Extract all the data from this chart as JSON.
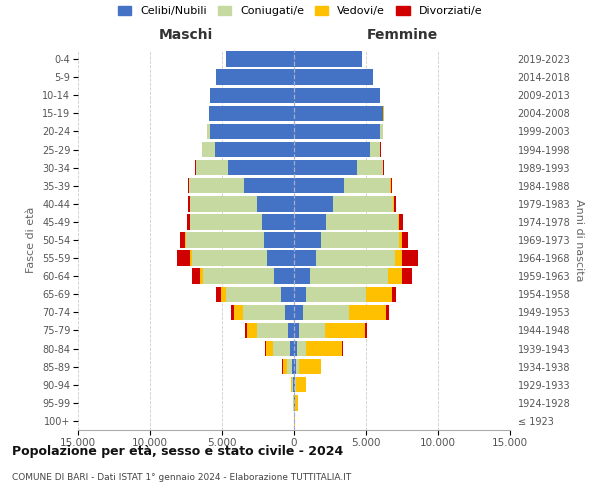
{
  "age_groups": [
    "100+",
    "95-99",
    "90-94",
    "85-89",
    "80-84",
    "75-79",
    "70-74",
    "65-69",
    "60-64",
    "55-59",
    "50-54",
    "45-49",
    "40-44",
    "35-39",
    "30-34",
    "25-29",
    "20-24",
    "15-19",
    "10-14",
    "5-9",
    "0-4"
  ],
  "birth_years": [
    "≤ 1923",
    "1924-1928",
    "1929-1933",
    "1934-1938",
    "1939-1943",
    "1944-1948",
    "1949-1953",
    "1954-1958",
    "1959-1963",
    "1964-1968",
    "1969-1973",
    "1974-1978",
    "1979-1983",
    "1984-1988",
    "1989-1993",
    "1994-1998",
    "1999-2003",
    "2004-2008",
    "2009-2013",
    "2014-2018",
    "2019-2023"
  ],
  "colors": {
    "celibi": "#4472c4",
    "coniugati": "#c5d9a0",
    "vedovi": "#ffc000",
    "divorziati": "#d00000"
  },
  "maschi": {
    "celibi": [
      10,
      30,
      60,
      120,
      250,
      450,
      650,
      900,
      1400,
      1900,
      2100,
      2200,
      2600,
      3500,
      4600,
      5500,
      5800,
      5900,
      5800,
      5400,
      4700
    ],
    "coniugati": [
      5,
      30,
      80,
      400,
      1200,
      2100,
      2900,
      3800,
      4900,
      5200,
      5400,
      5000,
      4600,
      3800,
      2200,
      900,
      250,
      20,
      5,
      2,
      1
    ],
    "vedovi": [
      5,
      20,
      80,
      250,
      500,
      700,
      600,
      400,
      200,
      100,
      60,
      30,
      15,
      10,
      5,
      3,
      2,
      1,
      0,
      0,
      0
    ],
    "divorziati": [
      2,
      5,
      15,
      30,
      80,
      150,
      200,
      300,
      600,
      900,
      350,
      200,
      120,
      80,
      50,
      20,
      10,
      5,
      2,
      1,
      0
    ]
  },
  "femmine": {
    "celibi": [
      15,
      40,
      80,
      150,
      200,
      350,
      600,
      800,
      1100,
      1500,
      1900,
      2200,
      2700,
      3500,
      4400,
      5300,
      6000,
      6200,
      6000,
      5500,
      4700
    ],
    "coniugati": [
      3,
      15,
      50,
      200,
      600,
      1800,
      3200,
      4200,
      5400,
      5500,
      5400,
      5000,
      4200,
      3200,
      1800,
      700,
      150,
      15,
      3,
      1,
      0
    ],
    "vedovi": [
      20,
      200,
      700,
      1500,
      2500,
      2800,
      2600,
      1800,
      1000,
      500,
      200,
      100,
      50,
      20,
      10,
      5,
      2,
      1,
      0,
      0,
      0
    ],
    "divorziati": [
      1,
      5,
      15,
      40,
      80,
      150,
      200,
      250,
      700,
      1100,
      450,
      300,
      150,
      80,
      40,
      15,
      5,
      2,
      1,
      0,
      0
    ]
  },
  "xlim": 15000,
  "xticks": [
    -15000,
    -10000,
    -5000,
    0,
    5000,
    10000,
    15000
  ],
  "xticklabels": [
    "15.000",
    "10.000",
    "5.000",
    "0",
    "5.000",
    "10.000",
    "15.000"
  ],
  "title": "Popolazione per età, sesso e stato civile - 2024",
  "subtitle": "COMUNE DI BARI - Dati ISTAT 1° gennaio 2024 - Elaborazione TUTTITALIA.IT",
  "ylabel_left": "Fasce di età",
  "ylabel_right": "Anni di nascita",
  "maschi_label": "Maschi",
  "femmine_label": "Femmine",
  "legend_labels": [
    "Celibi/Nubili",
    "Coniugati/e",
    "Vedovi/e",
    "Divorziati/e"
  ],
  "background_color": "#ffffff",
  "grid_color": "#cccccc"
}
